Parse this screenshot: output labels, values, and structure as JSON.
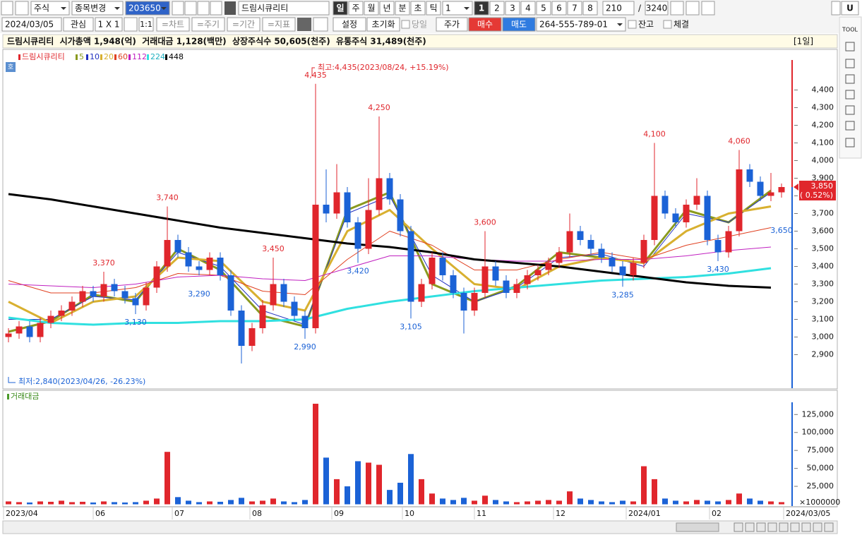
{
  "toolbar": {
    "market": "주식",
    "change_stock": "종목변경",
    "code": "203650",
    "stock_name": "드림시큐리티",
    "periods": [
      "일",
      "주",
      "월",
      "년",
      "분",
      "초",
      "틱"
    ],
    "period_count": "1",
    "layouts": [
      "1",
      "2",
      "3",
      "4",
      "5",
      "6",
      "7",
      "8"
    ],
    "view_count": "210",
    "separator": "/",
    "total_count": "3240",
    "user": "U",
    "date": "2024/03/05",
    "watch": "관심",
    "grid": "1 X 1",
    "ratio": "1:1",
    "menus": [
      "=차트",
      "=주기",
      "=기간",
      "=지표"
    ],
    "settings": "설정",
    "reset": "초기화",
    "today": "당일",
    "price": "주가",
    "buy": "매수",
    "sell": "매도",
    "account": "264-555-789-01",
    "balance": "잔고",
    "filled": "체결",
    "tool_label": "TOOL"
  },
  "info_bar": {
    "text": "드림시큐리티  시가총액 1,948(억)  거래대금 1,128(백만)  상장주식수 50,605(천주)  유통주식 31,489(천주)",
    "period": "[1일]",
    "badge": "호"
  },
  "chart_data": {
    "type": "candlestick",
    "name": "드림시큐리티",
    "up_color": "#e0262c",
    "down_color": "#1b62d6",
    "candles": [
      [
        3000,
        3050,
        2970,
        3020
      ],
      [
        3020,
        3090,
        2990,
        3060
      ],
      [
        3060,
        3090,
        2970,
        3000
      ],
      [
        3000,
        3110,
        2970,
        3080
      ],
      [
        3080,
        3150,
        3050,
        3120
      ],
      [
        3120,
        3180,
        3090,
        3150
      ],
      [
        3150,
        3230,
        3120,
        3200
      ],
      [
        3200,
        3290,
        3170,
        3260
      ],
      [
        3260,
        3290,
        3200,
        3230
      ],
      [
        3230,
        3370,
        3200,
        3300
      ],
      [
        3300,
        3330,
        3230,
        3260
      ],
      [
        3260,
        3290,
        3190,
        3220
      ],
      [
        3220,
        3250,
        3130,
        3180
      ],
      [
        3180,
        3310,
        3150,
        3280
      ],
      [
        3280,
        3430,
        3250,
        3400
      ],
      [
        3400,
        3740,
        3370,
        3550
      ],
      [
        3550,
        3580,
        3450,
        3480
      ],
      [
        3480,
        3510,
        3370,
        3400
      ],
      [
        3400,
        3430,
        3350,
        3380
      ],
      [
        3380,
        3480,
        3350,
        3450
      ],
      [
        3450,
        3480,
        3320,
        3350
      ],
      [
        3350,
        3380,
        3120,
        3150
      ],
      [
        3150,
        3180,
        2850,
        2950
      ],
      [
        2950,
        3080,
        2920,
        3050
      ],
      [
        3050,
        3210,
        3020,
        3180
      ],
      [
        3180,
        3450,
        3150,
        3300
      ],
      [
        3300,
        3330,
        3170,
        3200
      ],
      [
        3200,
        3230,
        3090,
        3120
      ],
      [
        3120,
        3150,
        2990,
        3050
      ],
      [
        3050,
        4435,
        3020,
        3750
      ],
      [
        3750,
        3950,
        3650,
        3700
      ],
      [
        3700,
        3980,
        3670,
        3820
      ],
      [
        3820,
        3850,
        3620,
        3650
      ],
      [
        3650,
        3680,
        3420,
        3500
      ],
      [
        3500,
        3900,
        3470,
        3720
      ],
      [
        3720,
        4250,
        3690,
        3900
      ],
      [
        3900,
        3930,
        3750,
        3780
      ],
      [
        3780,
        3810,
        3570,
        3600
      ],
      [
        3600,
        3630,
        3105,
        3200
      ],
      [
        3200,
        3330,
        3170,
        3300
      ],
      [
        3300,
        3480,
        3270,
        3450
      ],
      [
        3450,
        3480,
        3320,
        3350
      ],
      [
        3350,
        3380,
        3220,
        3250
      ],
      [
        3250,
        3280,
        3020,
        3150
      ],
      [
        3150,
        3280,
        3120,
        3250
      ],
      [
        3250,
        3600,
        3220,
        3400
      ],
      [
        3400,
        3430,
        3290,
        3320
      ],
      [
        3320,
        3350,
        3220,
        3250
      ],
      [
        3250,
        3330,
        3220,
        3300
      ],
      [
        3300,
        3380,
        3270,
        3350
      ],
      [
        3350,
        3410,
        3320,
        3380
      ],
      [
        3380,
        3450,
        3350,
        3420
      ],
      [
        3420,
        3510,
        3390,
        3480
      ],
      [
        3480,
        3700,
        3450,
        3600
      ],
      [
        3600,
        3630,
        3520,
        3550
      ],
      [
        3550,
        3580,
        3470,
        3500
      ],
      [
        3500,
        3530,
        3420,
        3450
      ],
      [
        3450,
        3480,
        3370,
        3400
      ],
      [
        3400,
        3430,
        3285,
        3350
      ],
      [
        3350,
        3450,
        3320,
        3420
      ],
      [
        3420,
        3580,
        3390,
        3550
      ],
      [
        3550,
        4100,
        3520,
        3800
      ],
      [
        3800,
        3830,
        3670,
        3700
      ],
      [
        3700,
        3730,
        3620,
        3650
      ],
      [
        3650,
        3780,
        3620,
        3750
      ],
      [
        3750,
        3900,
        3720,
        3800
      ],
      [
        3800,
        3830,
        3520,
        3550
      ],
      [
        3550,
        3580,
        3430,
        3480
      ],
      [
        3480,
        3630,
        3450,
        3600
      ],
      [
        3600,
        4060,
        3570,
        3950
      ],
      [
        3950,
        3980,
        3850,
        3880
      ],
      [
        3880,
        3910,
        3770,
        3800
      ],
      [
        3800,
        3930,
        3770,
        3820
      ],
      [
        3820,
        3870,
        3790,
        3850
      ]
    ],
    "series": [
      {
        "name": "5",
        "color": "#8a9a1e",
        "values": [
          3030,
          3090,
          3240,
          3200,
          3500,
          3380,
          3120,
          3060,
          3720,
          3820,
          3300,
          3200,
          3290,
          3480,
          3450,
          3420,
          3720,
          3650,
          3830
        ]
      },
      {
        "name": "10",
        "color": "#2030c0",
        "values": [
          3100,
          3100,
          3230,
          3210,
          3480,
          3400,
          3150,
          3070,
          3700,
          3800,
          3350,
          3200,
          3280,
          3450,
          3470,
          3400,
          3700,
          3650,
          3820
        ]
      },
      {
        "name": "20",
        "color": "#d8b030",
        "values": [
          3200,
          3080,
          3200,
          3230,
          3450,
          3430,
          3200,
          3150,
          3600,
          3720,
          3500,
          3300,
          3270,
          3400,
          3450,
          3420,
          3600,
          3700,
          3740
        ]
      },
      {
        "name": "60",
        "color": "#e04020",
        "values": [
          3320,
          3250,
          3250,
          3280,
          3360,
          3350,
          3260,
          3240,
          3440,
          3600,
          3520,
          3380,
          3380,
          3440,
          3480,
          3440,
          3520,
          3570,
          3620
        ]
      },
      {
        "name": "112",
        "color": "#c020c0",
        "values": [
          3300,
          3290,
          3280,
          3300,
          3340,
          3350,
          3330,
          3320,
          3390,
          3460,
          3460,
          3440,
          3430,
          3430,
          3440,
          3440,
          3460,
          3490,
          3510
        ]
      },
      {
        "name": "224",
        "color": "#30e0e0",
        "values": [
          3110,
          3080,
          3070,
          3080,
          3080,
          3090,
          3090,
          3100,
          3160,
          3200,
          3230,
          3260,
          3280,
          3300,
          3320,
          3330,
          3340,
          3360,
          3390
        ]
      },
      {
        "name": "448",
        "color": "#000000",
        "values": [
          3810,
          3780,
          3740,
          3700,
          3660,
          3620,
          3590,
          3560,
          3530,
          3510,
          3480,
          3440,
          3420,
          3400,
          3370,
          3340,
          3310,
          3290,
          3280
        ]
      }
    ],
    "peaks": [
      {
        "value": 3370,
        "label": "3,370",
        "color": "#e0262c"
      },
      {
        "value": 3130,
        "label": "3,130",
        "color": "#1b62d6"
      },
      {
        "value": 3740,
        "label": "3,740",
        "color": "#e0262c"
      },
      {
        "value": 3290,
        "label": "3,290",
        "color": "#1b62d6"
      },
      {
        "value": 3450,
        "label": "3,450",
        "color": "#e0262c"
      },
      {
        "value": 2990,
        "label": "2,990",
        "color": "#1b62d6"
      },
      {
        "value": 4435,
        "label": "4,435",
        "color": "#e0262c"
      },
      {
        "value": 3420,
        "label": "3,420",
        "color": "#1b62d6"
      },
      {
        "value": 4250,
        "label": "4,250",
        "color": "#e0262c"
      },
      {
        "value": 3105,
        "label": "3,105",
        "color": "#1b62d6"
      },
      {
        "value": 3600,
        "label": "3,600",
        "color": "#e0262c"
      },
      {
        "value": 3285,
        "label": "3,285",
        "color": "#1b62d6"
      },
      {
        "value": 4100,
        "label": "4,100",
        "color": "#e0262c"
      },
      {
        "value": 3430,
        "label": "3,430",
        "color": "#1b62d6"
      },
      {
        "value": 4060,
        "label": "4,060",
        "color": "#e0262c"
      },
      {
        "value": 3650,
        "label": "3,650",
        "color": "#1b62d6"
      }
    ],
    "high_note": "최고:4,435(2023/08/24, +15.19%)",
    "low_note": "최저:2,840(2023/04/26, -26.23%)",
    "last": {
      "value": 3850,
      "label": "3,850",
      "change": "( 0.52%)"
    },
    "ylim": [
      2710,
      4570
    ],
    "yticks": [
      {
        "value": 2900,
        "label": "2,900"
      },
      {
        "value": 3000,
        "label": "3,000"
      },
      {
        "value": 3100,
        "label": "3,100"
      },
      {
        "value": 3200,
        "label": "3,200"
      },
      {
        "value": 3300,
        "label": "3,300"
      },
      {
        "value": 3400,
        "label": "3,400"
      },
      {
        "value": 3500,
        "label": "3,500"
      },
      {
        "value": 3600,
        "label": "3,600"
      },
      {
        "value": 3700,
        "label": "3,700"
      },
      {
        "value": 3800,
        "label": "3,800"
      },
      {
        "value": 3900,
        "label": "3,900"
      },
      {
        "value": 4000,
        "label": "4,000"
      },
      {
        "value": 4100,
        "label": "4,100"
      },
      {
        "value": 4200,
        "label": "4,200"
      },
      {
        "value": 4300,
        "label": "4,300"
      },
      {
        "value": 4400,
        "label": "4,400"
      }
    ],
    "x_labels": [
      "2023/04",
      "06",
      "07",
      "08",
      "09",
      "10",
      "11",
      "12",
      "2024/01",
      "02",
      "2024/03/05"
    ]
  },
  "volume_chart": {
    "type": "bar",
    "title": "거래대금",
    "unit": "×1000000",
    "values": [
      4000,
      3000,
      2500,
      4000,
      3500,
      5000,
      3000,
      3500,
      2500,
      4000,
      3000,
      2500,
      3000,
      5000,
      8000,
      73000,
      10000,
      5000,
      3000,
      4000,
      3500,
      6000,
      9000,
      4000,
      5000,
      8000,
      4000,
      3000,
      6000,
      140000,
      65000,
      35000,
      25000,
      60000,
      58000,
      55000,
      20000,
      30000,
      70000,
      35000,
      15000,
      8000,
      6000,
      9000,
      5000,
      12000,
      6000,
      4000,
      3000,
      4000,
      5000,
      6000,
      5000,
      18000,
      8000,
      6000,
      4000,
      3000,
      5000,
      4000,
      53000,
      35000,
      8000,
      5000,
      4000,
      6000,
      5000,
      4000,
      6000,
      15000,
      8000,
      5000,
      4000,
      3000
    ],
    "ylim": [
      0,
      142000
    ],
    "yticks": [
      {
        "value": 25000,
        "label": "25,000"
      },
      {
        "value": 50000,
        "label": "50,000"
      },
      {
        "value": 75000,
        "label": "75,000"
      },
      {
        "value": 100000,
        "label": "100,000"
      },
      {
        "value": 125000,
        "label": "125,000"
      }
    ]
  }
}
